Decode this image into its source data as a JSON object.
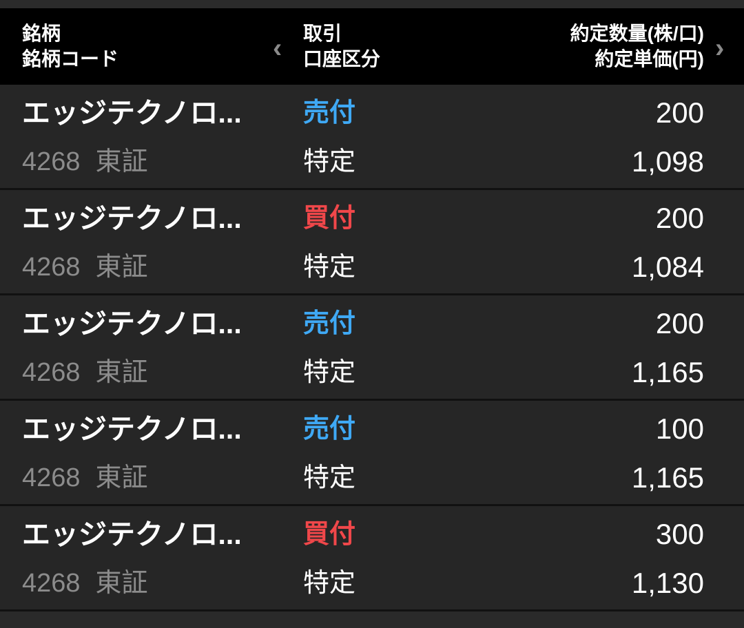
{
  "colors": {
    "sell": "#3fa9f5",
    "buy": "#f0474a",
    "header_bg": "#000000",
    "row_bg": "#262626",
    "code_text": "#8c8c8c"
  },
  "header": {
    "col1_line1": "銘柄",
    "col1_line2": "銘柄コード",
    "col2_line1": "取引",
    "col2_line2": "口座区分",
    "col3_line1": "約定数量(株/口)",
    "col3_line2": "約定単価(円)",
    "prev_icon": "chevron-left-icon",
    "next_icon": "chevron-right-icon"
  },
  "rows": [
    {
      "name": "エッジテクノロ...",
      "code": "4268",
      "market": "東証",
      "side": "売付",
      "side_type": "sell",
      "account": "特定",
      "quantity": "200",
      "price": "1,098"
    },
    {
      "name": "エッジテクノロ...",
      "code": "4268",
      "market": "東証",
      "side": "買付",
      "side_type": "buy",
      "account": "特定",
      "quantity": "200",
      "price": "1,084"
    },
    {
      "name": "エッジテクノロ...",
      "code": "4268",
      "market": "東証",
      "side": "売付",
      "side_type": "sell",
      "account": "特定",
      "quantity": "200",
      "price": "1,165"
    },
    {
      "name": "エッジテクノロ...",
      "code": "4268",
      "market": "東証",
      "side": "売付",
      "side_type": "sell",
      "account": "特定",
      "quantity": "100",
      "price": "1,165"
    },
    {
      "name": "エッジテクノロ...",
      "code": "4268",
      "market": "東証",
      "side": "買付",
      "side_type": "buy",
      "account": "特定",
      "quantity": "300",
      "price": "1,130"
    }
  ]
}
